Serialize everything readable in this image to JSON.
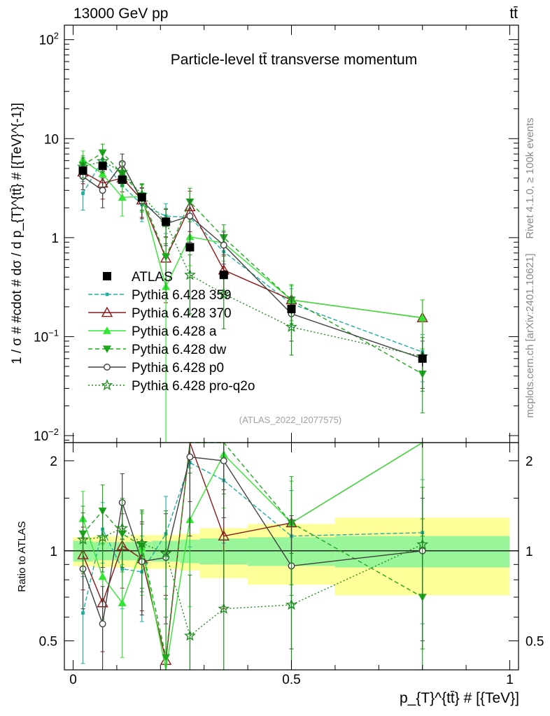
{
  "header": {
    "energy_label": "13000 GeV pp",
    "process_label": "tt̄"
  },
  "side_labels": {
    "rivet": "Rivet 4.1.0, ≥ 100k events",
    "source": "mcplots.cern.ch [arXiv:2401.10621]"
  },
  "chart_data": [
    {
      "type": "line",
      "title": "Particle-level tt̄ transverse momentum",
      "watermark": "(ATLAS_2022_I2077575)",
      "ylabel": "1 / σ # #cdot # dσ / d p_{T}^{tt̄} # [{TeV}^{-1}]",
      "xlabel": "p_{T}^{tt̄} # [{TeV}]",
      "xlim": [
        -0.02,
        1.02
      ],
      "ylim": [
        0.0085,
        140
      ],
      "yscale": "log",
      "x_ticks": [
        "0",
        "0.5",
        "1"
      ],
      "y_ticks": [
        "10^{-2}",
        "10^{-1}",
        "1",
        "10",
        "10^{2}"
      ],
      "bins": [
        {
          "lo": 0.0,
          "hi": 0.045
        },
        {
          "lo": 0.045,
          "hi": 0.09
        },
        {
          "lo": 0.09,
          "hi": 0.135
        },
        {
          "lo": 0.135,
          "hi": 0.18
        },
        {
          "lo": 0.18,
          "hi": 0.245
        },
        {
          "lo": 0.245,
          "hi": 0.29
        },
        {
          "lo": 0.29,
          "hi": 0.4
        },
        {
          "lo": 0.4,
          "hi": 0.6
        },
        {
          "lo": 0.6,
          "hi": 1.0
        }
      ],
      "x": [
        0.0225,
        0.0675,
        0.1125,
        0.1575,
        0.2125,
        0.2675,
        0.345,
        0.5,
        0.8
      ],
      "legend": {
        "location": "lower-left"
      },
      "series": [
        {
          "name": "ATLAS",
          "values": [
            4.75,
            5.3,
            3.85,
            2.55,
            1.45,
            0.8,
            0.42,
            0.19,
            0.06
          ],
          "errors": [
            0.35,
            0.35,
            0.3,
            0.2,
            0.12,
            0.08,
            0.04,
            0.02,
            0.01
          ],
          "color": "#000000",
          "marker": "square"
        },
        {
          "name": "Pythia 6.428 359",
          "values": [
            2.8,
            6.1,
            3.35,
            2.15,
            1.65,
            1.6,
            0.72,
            0.215,
            0.07
          ],
          "errors": [
            0.9,
            1.4,
            0.9,
            0.7,
            0.55,
            0.75,
            0.28,
            0.09,
            0.035
          ],
          "color": "#20b0a0",
          "dash": "6,3",
          "marker": "square-small"
        },
        {
          "name": "Pythia 6.428 370",
          "values": [
            4.6,
            3.55,
            4.0,
            2.4,
            0.62,
            2.05,
            0.47,
            0.235,
            0.155
          ],
          "errors": [
            1.1,
            1.1,
            1.1,
            0.8,
            0.4,
            0.9,
            0.2,
            0.09,
            0.08
          ],
          "color": "#8b1a1a",
          "dash": "",
          "marker": "triangle-open"
        },
        {
          "name": "Pythia 6.428 a",
          "values": [
            6.1,
            4.4,
            2.55,
            2.6,
            0.32,
            1.02,
            0.88,
            0.235,
            0.155
          ],
          "errors": [
            1.4,
            1.2,
            0.9,
            0.8,
            0.33,
            0.5,
            0.3,
            0.09,
            0.08
          ],
          "color": "#33e633",
          "dash": "",
          "marker": "triangle"
        },
        {
          "name": "Pythia 6.428 dw",
          "values": [
            5.4,
            7.2,
            4.4,
            2.65,
            0.64,
            2.3,
            1.0,
            0.235,
            0.042
          ],
          "errors": [
            1.3,
            1.6,
            1.1,
            0.8,
            0.36,
            0.85,
            0.35,
            0.1,
            0.025
          ],
          "color": "#1da81d",
          "dash": "6,4",
          "marker": "triangle-down"
        },
        {
          "name": "Pythia 6.428 p0",
          "values": [
            4.15,
            3.0,
            5.6,
            2.35,
            1.38,
            1.65,
            0.84,
            0.17,
            0.06
          ],
          "errors": [
            1.1,
            1.0,
            1.4,
            0.8,
            0.55,
            0.75,
            0.3,
            0.08,
            0.03
          ],
          "color": "#404040",
          "dash": "",
          "marker": "circle-open"
        },
        {
          "name": "Pythia 6.428 pro-q2o",
          "values": [
            5.2,
            5.9,
            4.6,
            2.7,
            1.42,
            0.42,
            0.27,
            0.125,
            0.063
          ],
          "errors": [
            1.2,
            1.4,
            1.2,
            0.8,
            0.55,
            0.25,
            0.15,
            0.06,
            0.035
          ],
          "color": "#1a8c1a",
          "dash": "2,3",
          "marker": "star"
        }
      ]
    },
    {
      "type": "line",
      "title": "",
      "ylabel": "Ratio to ATLAS",
      "xlim": [
        -0.02,
        1.02
      ],
      "ylim": [
        0.4,
        2.3
      ],
      "yscale": "log",
      "y_ticks": [
        "0.5",
        "1",
        "2"
      ],
      "reference": 1,
      "uncertainty_bands": {
        "inner": [
          0.08,
          0.07,
          0.07,
          0.07,
          0.08,
          0.09,
          0.1,
          0.11,
          0.12
        ],
        "outer": [
          0.11,
          0.12,
          0.12,
          0.13,
          0.13,
          0.14,
          0.19,
          0.23,
          0.29
        ],
        "inner_color": "#99f599",
        "outer_color": "#ffff99"
      },
      "series": [
        {
          "name": "Pythia 6.428 359",
          "values": [
            0.62,
            1.18,
            0.87,
            0.85,
            1.14,
            1.97,
            1.72,
            1.12,
            1.15
          ],
          "errors": [
            0.2,
            0.27,
            0.23,
            0.27,
            0.38,
            0.94,
            0.66,
            0.47,
            0.58
          ]
        },
        {
          "name": "Pythia 6.428 370",
          "values": [
            0.97,
            0.67,
            1.04,
            0.94,
            0.43,
            2.56,
            1.12,
            1.24,
            2.58
          ],
          "errors": [
            0.23,
            0.21,
            0.29,
            0.31,
            0.28,
            1.1,
            0.48,
            0.47,
            1.3
          ]
        },
        {
          "name": "Pythia 6.428 a",
          "values": [
            1.28,
            0.82,
            0.67,
            1.02,
            0.22,
            1.27,
            2.1,
            1.24,
            2.58
          ],
          "errors": [
            0.3,
            0.23,
            0.23,
            0.31,
            0.23,
            0.62,
            0.71,
            0.47,
            1.3
          ]
        },
        {
          "name": "Pythia 6.428 dw",
          "values": [
            1.14,
            1.36,
            1.14,
            1.04,
            0.44,
            2.88,
            2.38,
            1.24,
            0.7
          ],
          "errors": [
            0.27,
            0.3,
            0.29,
            0.31,
            0.25,
            1.06,
            0.83,
            0.53,
            0.42
          ]
        },
        {
          "name": "Pythia 6.428 p0",
          "values": [
            0.87,
            0.57,
            1.45,
            0.92,
            0.95,
            2.06,
            2.0,
            0.89,
            1.0
          ],
          "errors": [
            0.23,
            0.19,
            0.36,
            0.31,
            0.38,
            0.94,
            0.71,
            0.42,
            0.5
          ]
        },
        {
          "name": "Pythia 6.428 pro-q2o",
          "values": [
            1.09,
            1.11,
            1.19,
            1.06,
            0.98,
            0.52,
            0.64,
            0.66,
            1.05
          ],
          "errors": [
            0.25,
            0.26,
            0.31,
            0.31,
            0.38,
            0.31,
            0.36,
            0.32,
            0.58
          ]
        }
      ]
    }
  ]
}
